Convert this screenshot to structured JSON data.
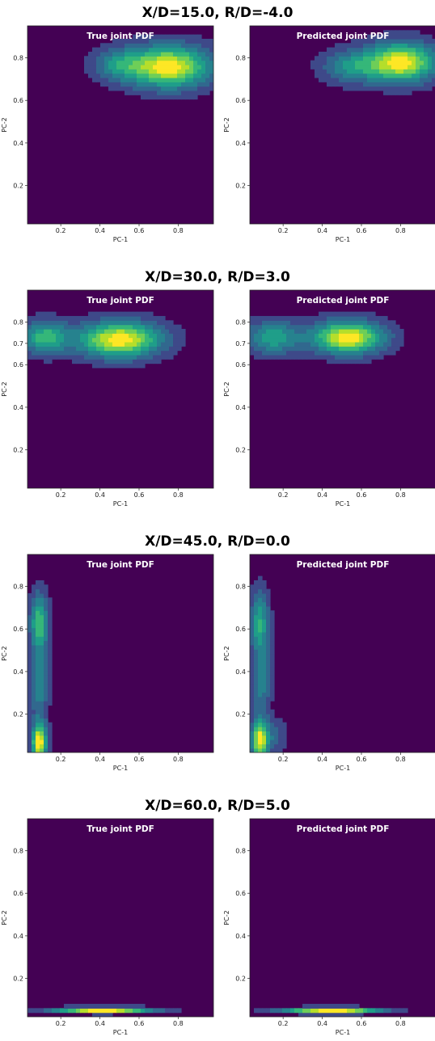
{
  "chart_data": [
    {
      "type": "contour",
      "row_title": "X/D=15.0, R/D=-4.0",
      "panels": [
        {
          "title": "True joint PDF",
          "xlabel": "PC-1",
          "ylabel": "PC-2",
          "xticks": [
            "0.2",
            "0.4",
            "0.6",
            "0.8"
          ],
          "yticks": [
            "0.2",
            "0.4",
            "0.6",
            "0.8"
          ],
          "xlim": [
            0.03,
            0.98
          ],
          "ylim": [
            0.02,
            0.95
          ],
          "peaks": [
            {
              "x": 0.75,
              "y": 0.76,
              "sx": 0.14,
              "sy": 0.065,
              "a": 1.0
            },
            {
              "x": 0.5,
              "y": 0.77,
              "sx": 0.09,
              "sy": 0.05,
              "a": 0.35
            }
          ]
        },
        {
          "title": "Predicted joint PDF",
          "xlabel": "PC-1",
          "ylabel": "PC-2",
          "xticks": [
            "0.2",
            "0.4",
            "0.6",
            "0.8"
          ],
          "yticks": [
            "0.2",
            "0.4",
            "0.6",
            "0.8"
          ],
          "xlim": [
            0.03,
            0.98
          ],
          "ylim": [
            0.02,
            0.95
          ],
          "peaks": [
            {
              "x": 0.8,
              "y": 0.78,
              "sx": 0.12,
              "sy": 0.06,
              "a": 1.0
            },
            {
              "x": 0.55,
              "y": 0.76,
              "sx": 0.1,
              "sy": 0.05,
              "a": 0.4
            }
          ]
        }
      ]
    },
    {
      "type": "contour",
      "row_title": "X/D=30.0, R/D=3.0",
      "panels": [
        {
          "title": "True joint PDF",
          "xlabel": "PC-1",
          "ylabel": "PC-2",
          "xticks": [
            "0.2",
            "0.4",
            "0.6",
            "0.8"
          ],
          "yticks": [
            "0.2",
            "0.4",
            "0.6",
            "0.7",
            "0.8"
          ],
          "xlim": [
            0.03,
            0.98
          ],
          "ylim": [
            0.02,
            0.95
          ],
          "peaks": [
            {
              "x": 0.5,
              "y": 0.72,
              "sx": 0.14,
              "sy": 0.055,
              "a": 1.0
            },
            {
              "x": 0.12,
              "y": 0.73,
              "sx": 0.08,
              "sy": 0.05,
              "a": 0.6
            }
          ]
        },
        {
          "title": "Predicted joint PDF",
          "xlabel": "PC-1",
          "ylabel": "PC-2",
          "xticks": [
            "0.2",
            "0.4",
            "0.6",
            "0.8"
          ],
          "yticks": [
            "0.2",
            "0.4",
            "0.6",
            "0.7",
            "0.8"
          ],
          "xlim": [
            0.03,
            0.98
          ],
          "ylim": [
            0.02,
            0.95
          ],
          "peaks": [
            {
              "x": 0.53,
              "y": 0.73,
              "sx": 0.12,
              "sy": 0.05,
              "a": 1.0
            },
            {
              "x": 0.15,
              "y": 0.73,
              "sx": 0.09,
              "sy": 0.05,
              "a": 0.5
            }
          ]
        }
      ]
    },
    {
      "type": "contour",
      "row_title": "X/D=45.0, R/D=0.0",
      "panels": [
        {
          "title": "True joint PDF",
          "xlabel": "PC-1",
          "ylabel": "PC-2",
          "xticks": [
            "0.2",
            "0.4",
            "0.6",
            "0.8"
          ],
          "yticks": [
            "0.2",
            "0.4",
            "0.6",
            "0.8"
          ],
          "xlim": [
            0.03,
            0.98
          ],
          "ylim": [
            0.02,
            0.95
          ],
          "peaks": [
            {
              "x": 0.09,
              "y": 0.07,
              "sx": 0.025,
              "sy": 0.06,
              "a": 1.0
            },
            {
              "x": 0.09,
              "y": 0.63,
              "sx": 0.03,
              "sy": 0.09,
              "a": 0.6
            },
            {
              "x": 0.09,
              "y": 0.35,
              "sx": 0.03,
              "sy": 0.12,
              "a": 0.35
            }
          ]
        },
        {
          "title": "Predicted joint PDF",
          "xlabel": "PC-1",
          "ylabel": "PC-2",
          "xticks": [
            "0.2",
            "0.4",
            "0.6",
            "0.8"
          ],
          "yticks": [
            "0.2",
            "0.4",
            "0.6",
            "0.8"
          ],
          "xlim": [
            0.03,
            0.98
          ],
          "ylim": [
            0.02,
            0.95
          ],
          "peaks": [
            {
              "x": 0.08,
              "y": 0.08,
              "sx": 0.028,
              "sy": 0.06,
              "a": 0.85
            },
            {
              "x": 0.08,
              "y": 0.63,
              "sx": 0.03,
              "sy": 0.1,
              "a": 0.5
            },
            {
              "x": 0.09,
              "y": 0.35,
              "sx": 0.03,
              "sy": 0.12,
              "a": 0.3
            },
            {
              "x": 0.14,
              "y": 0.1,
              "sx": 0.05,
              "sy": 0.05,
              "a": 0.2
            }
          ]
        }
      ]
    },
    {
      "type": "contour",
      "row_title": "X/D=60.0, R/D=5.0",
      "panels": [
        {
          "title": "True joint PDF",
          "xlabel": "PC-1",
          "ylabel": "PC-2",
          "xticks": [
            "0.2",
            "0.4",
            "0.6",
            "0.8"
          ],
          "yticks": [
            "0.2",
            "0.4",
            "0.6",
            "0.8"
          ],
          "xlim": [
            0.03,
            0.98
          ],
          "ylim": [
            0.02,
            0.95
          ],
          "peaks": [
            {
              "x": 0.42,
              "y": 0.052,
              "sx": 0.16,
              "sy": 0.009,
              "a": 1.0
            }
          ]
        },
        {
          "title": "Predicted joint PDF",
          "xlabel": "PC-1",
          "ylabel": "PC-2",
          "xticks": [
            "0.2",
            "0.4",
            "0.6",
            "0.8"
          ],
          "yticks": [
            "0.2",
            "0.4",
            "0.6",
            "0.8"
          ],
          "xlim": [
            0.03,
            0.98
          ],
          "ylim": [
            0.02,
            0.95
          ],
          "peaks": [
            {
              "x": 0.45,
              "y": 0.05,
              "sx": 0.16,
              "sy": 0.009,
              "a": 0.85
            }
          ]
        }
      ]
    }
  ],
  "colormap": [
    "#440154",
    "#482878",
    "#3e4989",
    "#31688e",
    "#26828e",
    "#1f9e89",
    "#35b779",
    "#6ece58",
    "#b5de2b",
    "#fde725"
  ]
}
